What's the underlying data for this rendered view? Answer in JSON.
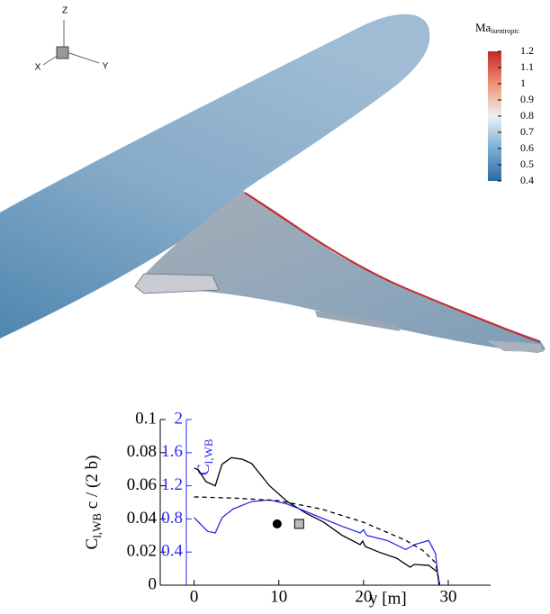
{
  "triad": {
    "z": "Z",
    "x": "X",
    "y": "Y"
  },
  "colorbar": {
    "title": "Ma",
    "title_sub": "isentropic",
    "lim": [
      0.4,
      1.2
    ],
    "ticks": [
      1.2,
      1.1,
      1,
      0.9,
      0.8,
      0.7,
      0.6,
      0.5,
      0.4
    ]
  },
  "chart_data": {
    "type": "line",
    "ylabel": "C",
    "ylabel_sub": "l,WB",
    "ylabel_rest": " c / (2 b)",
    "y2label": "C",
    "y2label_sub": "l,WB",
    "xlabel": "y [m]",
    "xlim": [
      -4,
      35
    ],
    "xticks": [
      0,
      10,
      20,
      30
    ],
    "ylim": [
      0,
      0.1
    ],
    "yticks": [
      0,
      0.02,
      0.04,
      0.06,
      0.08,
      0.1
    ],
    "y2lim": [
      0,
      2
    ],
    "y2ticks": [
      0.4,
      0.8,
      1.2,
      1.6,
      2
    ],
    "y2color": "#2a2af0",
    "series": [
      {
        "color": "#000000",
        "dash": false,
        "x": [
          0,
          0.5,
          1.4,
          2.5,
          2.8,
          3.3,
          4.4,
          5.7,
          6.8,
          8.9,
          11,
          13.2,
          15.3,
          17.5,
          19.6,
          19.9,
          20.2,
          21.8,
          23.9,
          25.5,
          26,
          27.7,
          28.7,
          29
        ],
        "values": [
          0.0707,
          0.0696,
          0.0625,
          0.06,
          0.065,
          0.073,
          0.077,
          0.076,
          0.0734,
          0.06,
          0.0505,
          0.0435,
          0.038,
          0.03,
          0.0245,
          0.0266,
          0.0234,
          0.02,
          0.0163,
          0.0109,
          0.0125,
          0.012,
          0.008,
          0
        ]
      },
      {
        "color": "#2a2af0",
        "dash": false,
        "axis": "y2",
        "x": [
          0,
          1.6,
          2.5,
          3.3,
          4.6,
          6.8,
          8.9,
          11,
          13.2,
          15.3,
          17.5,
          19.6,
          20.0,
          20.4,
          22.8,
          25,
          26,
          27.7,
          28.5,
          28.9
        ],
        "values": [
          0.815,
          0.65,
          0.63,
          0.815,
          0.92,
          1.01,
          1.03,
          0.98,
          0.89,
          0.8,
          0.71,
          0.63,
          0.67,
          0.6,
          0.54,
          0.43,
          0.49,
          0.54,
          0.38,
          0
        ]
      },
      {
        "color": "#000000",
        "dash": true,
        "x": [
          0,
          5,
          10,
          15,
          20,
          25,
          27,
          28.5,
          29
        ],
        "values": [
          0.0533,
          0.0525,
          0.051,
          0.046,
          0.038,
          0.027,
          0.021,
          0.0136,
          0
        ]
      }
    ],
    "points": [
      {
        "x": 9.8,
        "y": 0.037,
        "marker": "circle",
        "color": "#000000"
      },
      {
        "x": 12.4,
        "y": 0.037,
        "marker": "square",
        "color": "#bbbbbb"
      }
    ]
  }
}
